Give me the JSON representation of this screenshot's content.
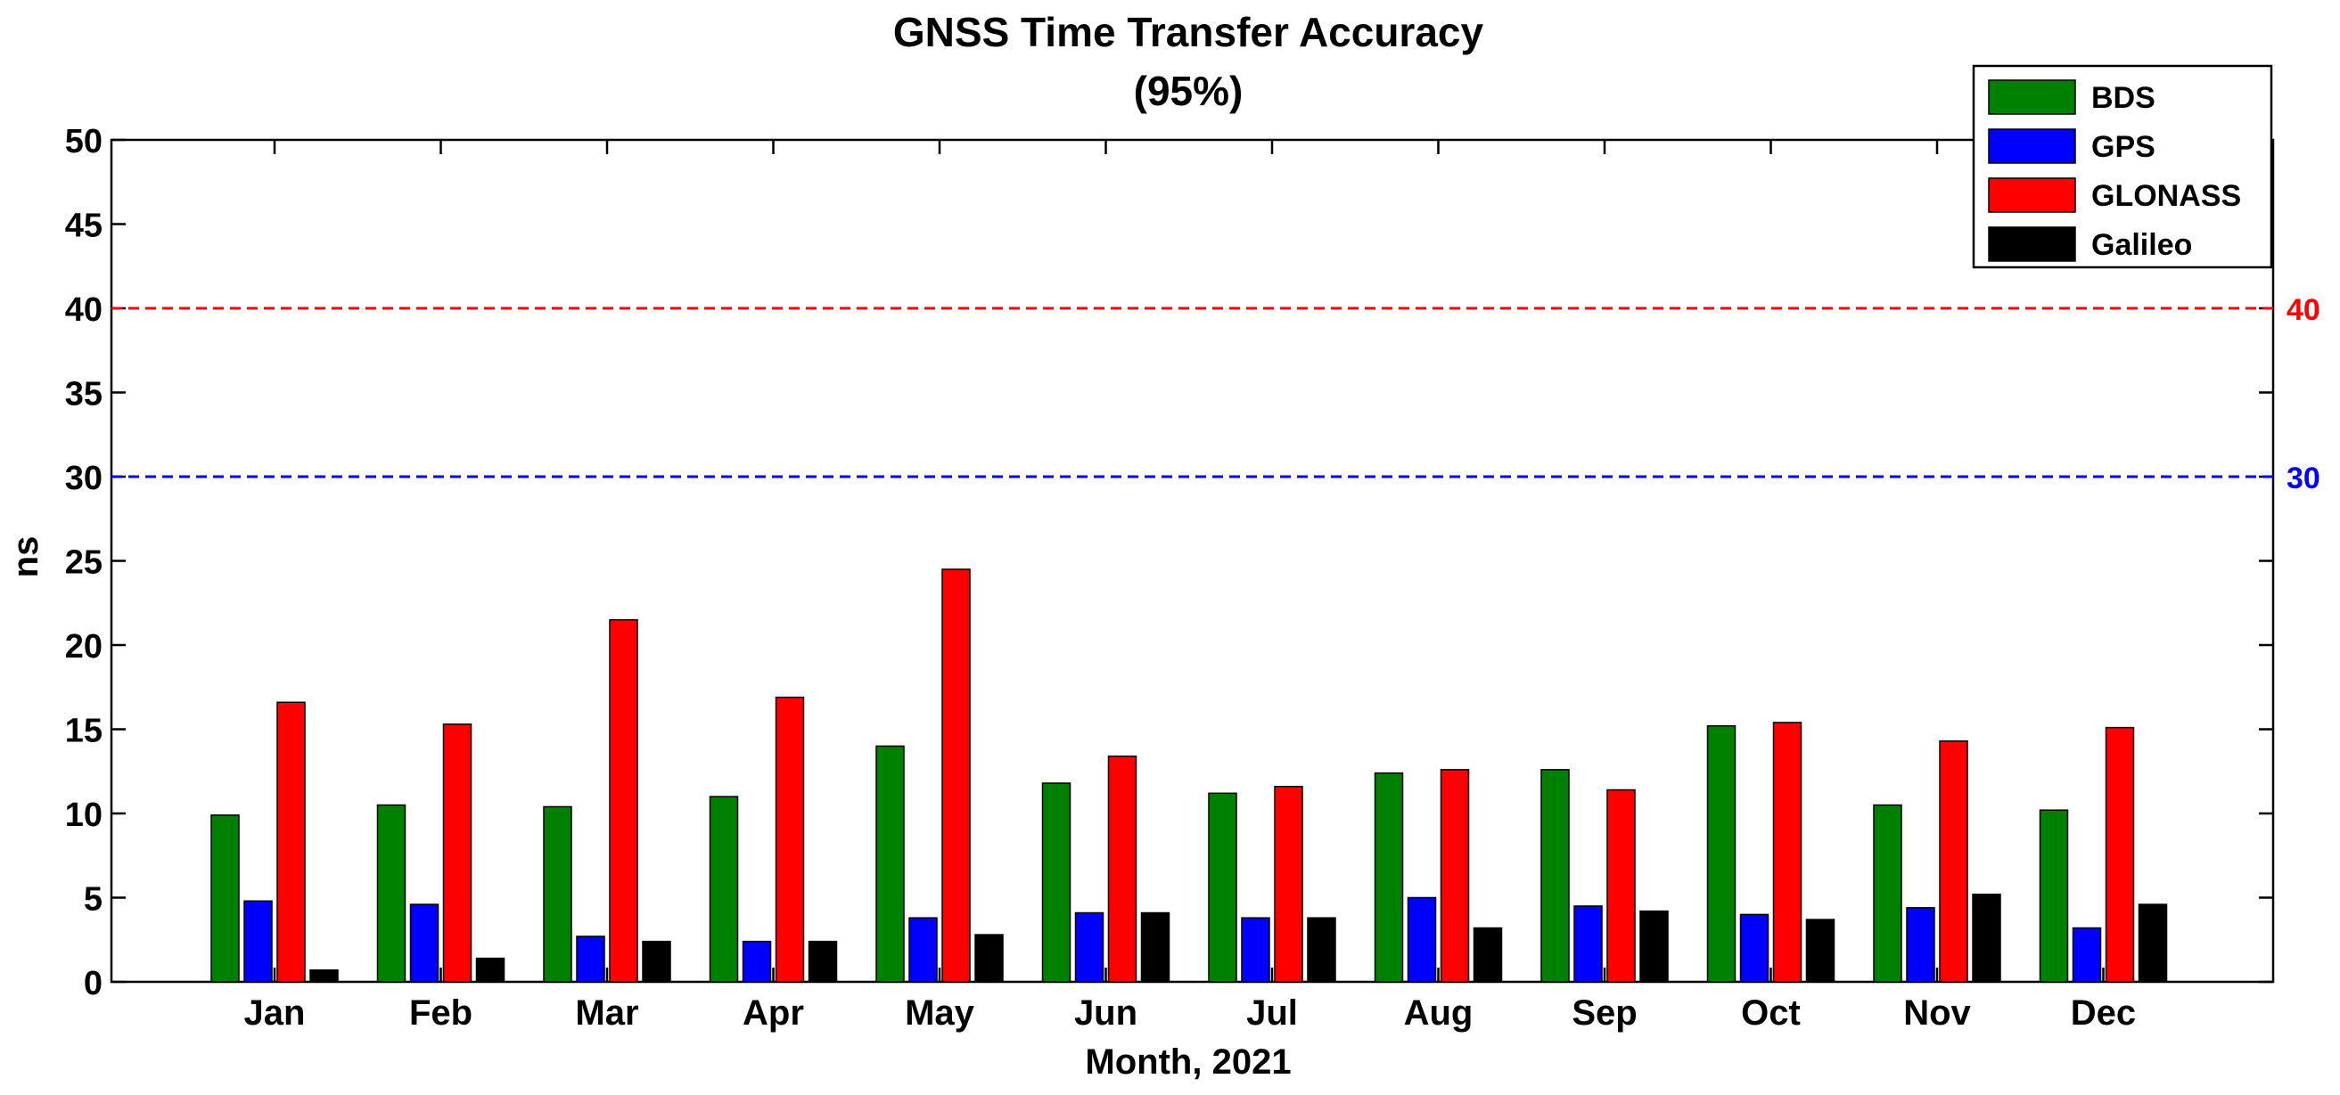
{
  "chart_data": {
    "type": "bar",
    "title": "GNSS Time Transfer Accuracy",
    "subtitle": "(95%)",
    "xlabel": "Month, 2021",
    "ylabel": "ns",
    "ylim": [
      0,
      50
    ],
    "yticks": [
      "0",
      "5",
      "10",
      "15",
      "20",
      "25",
      "30",
      "35",
      "40",
      "45",
      "50"
    ],
    "grid": false,
    "legend_position": "top-right",
    "categories": [
      "Jan",
      "Feb",
      "Mar",
      "Apr",
      "May",
      "Jun",
      "Jul",
      "Aug",
      "Sep",
      "Oct",
      "Nov",
      "Dec"
    ],
    "series": [
      {
        "name": "BDS",
        "color": "#008000",
        "values": [
          9.9,
          10.5,
          10.4,
          11.0,
          14.0,
          11.8,
          11.2,
          12.4,
          12.6,
          15.2,
          10.5,
          10.2
        ]
      },
      {
        "name": "GPS",
        "color": "#0000ff",
        "values": [
          4.8,
          4.6,
          2.7,
          2.4,
          3.8,
          4.1,
          3.8,
          5.0,
          4.5,
          4.0,
          4.4,
          3.2
        ]
      },
      {
        "name": "GLONASS",
        "color": "#ff0000",
        "values": [
          16.6,
          15.3,
          21.5,
          16.9,
          24.5,
          13.4,
          11.6,
          12.6,
          11.4,
          15.4,
          14.3,
          15.1
        ]
      },
      {
        "name": "Galileo",
        "color": "#000000",
        "values": [
          0.7,
          1.4,
          2.4,
          2.4,
          2.8,
          4.1,
          3.8,
          3.2,
          4.2,
          3.7,
          5.2,
          4.6
        ]
      }
    ],
    "reference_lines": [
      {
        "value": 40,
        "label": "40",
        "color": "#ff0000",
        "style": "dashed"
      },
      {
        "value": 30,
        "label": "30",
        "color": "#0000ff",
        "style": "dashed"
      }
    ]
  }
}
